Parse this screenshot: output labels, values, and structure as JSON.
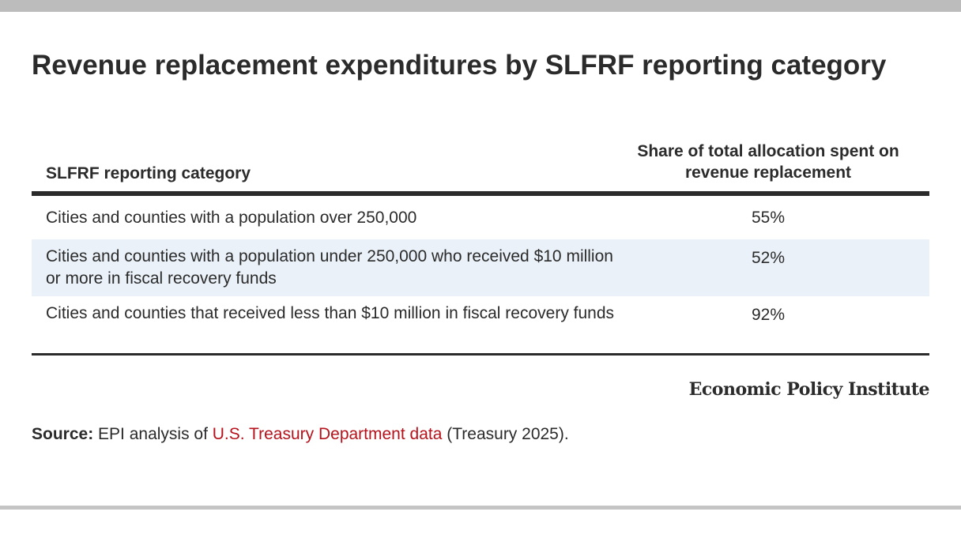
{
  "title": "Revenue replacement expenditures by SLFRF reporting category",
  "table": {
    "headers": {
      "category": "SLFRF reporting category",
      "share": "Share of total allocation spent on revenue replacement"
    },
    "rows": [
      {
        "category": "Cities and counties with a population over 250,000",
        "share": "55%"
      },
      {
        "category": "Cities and counties with a population under 250,000 who received $10 million or more in fiscal recovery funds",
        "share": "52%"
      },
      {
        "category": "Cities and counties that received less than $10 million in fiscal recovery funds",
        "share": "92%"
      }
    ]
  },
  "brand": "Economic Policy Institute",
  "source": {
    "label": "Source:",
    "text_before": " EPI analysis of ",
    "link_text": "U.S. Treasury Department data",
    "text_after": " (Treasury 2025)."
  },
  "colors": {
    "text": "#2b2b2b",
    "link": "#b5121b",
    "row_shade": "#eaf1f8",
    "top_bar": "#bcbcbc"
  }
}
